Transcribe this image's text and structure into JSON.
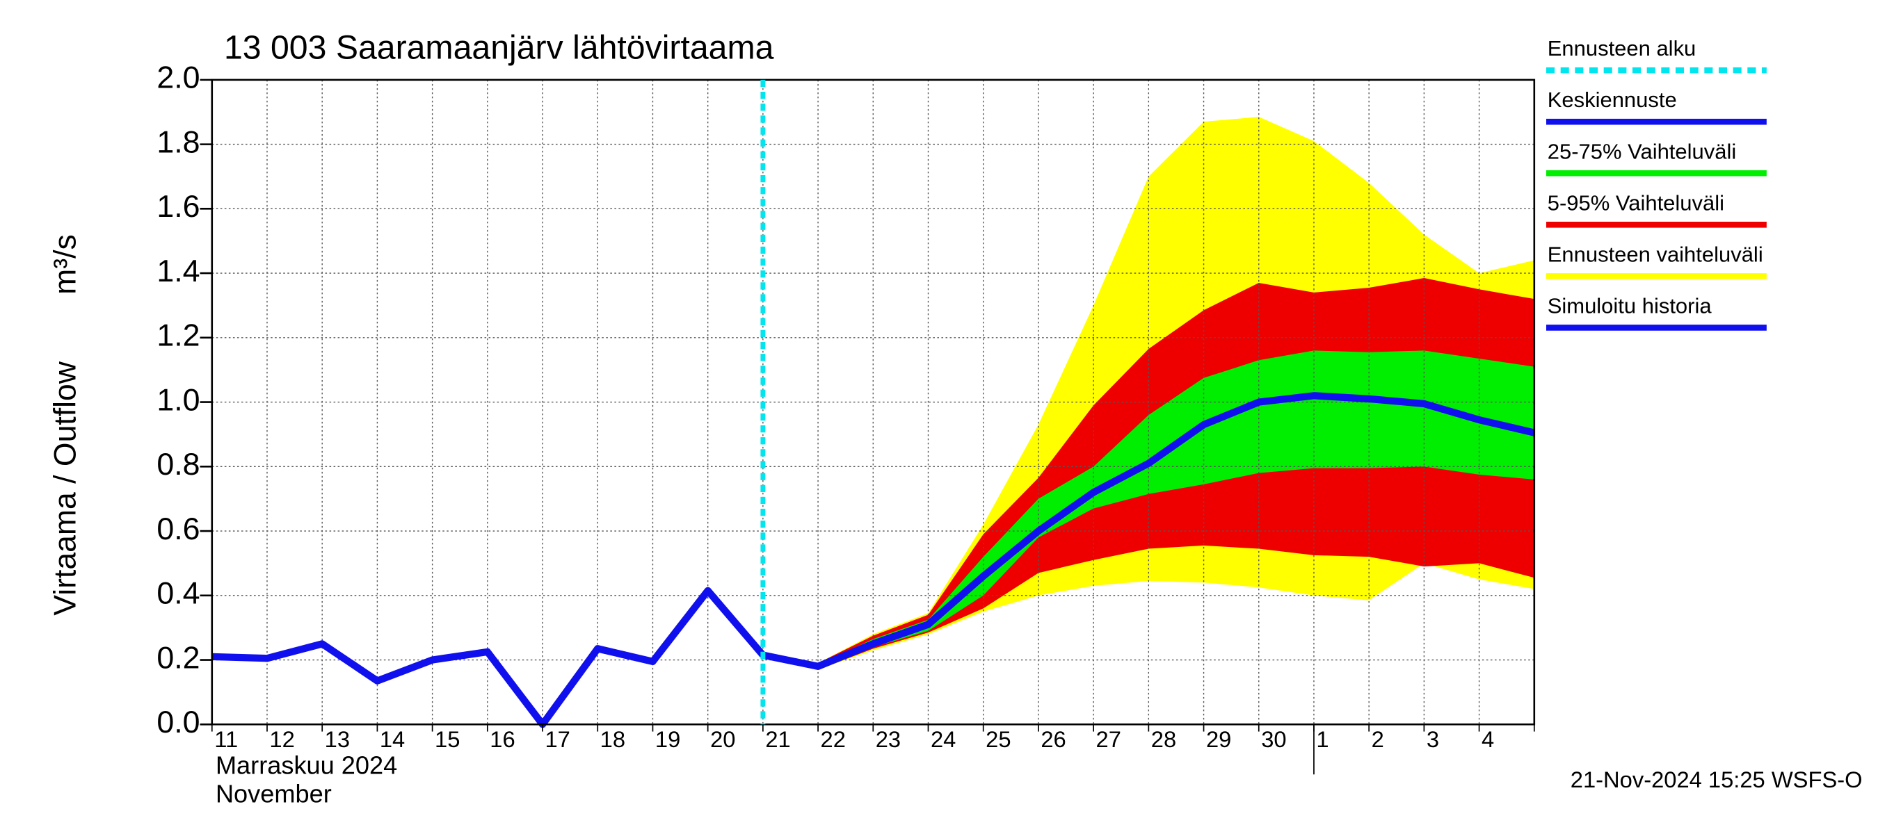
{
  "chart_data": {
    "type": "band-line",
    "title": "13 003 Saaramaanjärv lähtövirtaama",
    "y_label": "Virtaama / Outflow",
    "y_unit": "m³/s",
    "x_label_fi": "Marraskuu 2024",
    "x_label_en": "November",
    "footer": "21-Nov-2024 15:25 WSFS-O",
    "categories": [
      "11",
      "12",
      "13",
      "14",
      "15",
      "16",
      "17",
      "18",
      "19",
      "20",
      "21",
      "22",
      "23",
      "24",
      "25",
      "26",
      "27",
      "28",
      "29",
      "30",
      "1",
      "2",
      "3",
      "4",
      null
    ],
    "ylim": [
      0,
      2.0
    ],
    "yticks": [
      {
        "value": 0,
        "label": "0.0"
      },
      0.2,
      0.4,
      0.6,
      0.8,
      {
        "value": 1,
        "label": "1.0"
      },
      1.2,
      1.4,
      1.6,
      1.8,
      {
        "value": 2,
        "label": "2.0"
      }
    ],
    "grid": true,
    "marker": {
      "name": "Ennusteen alku",
      "color": "#00e5ee"
    },
    "series": [
      {
        "name": "Keskiennuste",
        "color": "#1010ee",
        "kind": "line",
        "values": [
          null,
          null,
          null,
          null,
          null,
          null,
          null,
          null,
          null,
          null,
          0.215,
          0.18,
          0.25,
          0.31,
          0.46,
          0.6,
          0.72,
          0.81,
          0.93,
          1.0,
          1.02,
          1.01,
          0.995,
          0.945,
          0.905
        ]
      },
      {
        "name": "25-75% Vaihteluväli",
        "color": "#00ee00",
        "kind": "band",
        "low": [
          null,
          null,
          null,
          null,
          null,
          null,
          null,
          null,
          null,
          null,
          0.21,
          0.175,
          0.24,
          0.29,
          0.4,
          0.58,
          0.67,
          0.715,
          0.745,
          0.78,
          0.795,
          0.795,
          0.8,
          0.775,
          0.76
        ],
        "high": [
          null,
          null,
          null,
          null,
          null,
          null,
          null,
          null,
          null,
          null,
          0.22,
          0.185,
          0.265,
          0.325,
          0.52,
          0.7,
          0.8,
          0.96,
          1.075,
          1.13,
          1.16,
          1.155,
          1.16,
          1.135,
          1.11
        ]
      },
      {
        "name": "5-95% Vaihteluväli",
        "color": "#ee0000",
        "kind": "band",
        "low": [
          null,
          null,
          null,
          null,
          null,
          null,
          null,
          null,
          null,
          null,
          0.21,
          0.17,
          0.235,
          0.285,
          0.36,
          0.47,
          0.51,
          0.545,
          0.555,
          0.545,
          0.525,
          0.52,
          0.49,
          0.5,
          0.455
        ],
        "high": [
          null,
          null,
          null,
          null,
          null,
          null,
          null,
          null,
          null,
          null,
          0.225,
          0.19,
          0.275,
          0.34,
          0.59,
          0.765,
          0.99,
          1.165,
          1.285,
          1.37,
          1.34,
          1.355,
          1.385,
          1.35,
          1.32
        ]
      },
      {
        "name": "Ennusteen vaihteluväli",
        "color": "#ffff00",
        "kind": "band",
        "low": [
          null,
          null,
          null,
          null,
          null,
          null,
          null,
          null,
          null,
          null,
          0.21,
          0.17,
          0.23,
          0.28,
          0.35,
          0.4,
          0.43,
          0.445,
          0.44,
          0.425,
          0.4,
          0.385,
          0.5,
          0.45,
          0.42
        ],
        "high": [
          null,
          null,
          null,
          null,
          null,
          null,
          null,
          null,
          null,
          null,
          0.225,
          0.19,
          0.28,
          0.345,
          0.62,
          0.93,
          1.3,
          1.7,
          1.87,
          1.885,
          1.81,
          1.68,
          1.52,
          1.4,
          1.44
        ]
      },
      {
        "name": "Simuloitu historia",
        "color": "#1010ee",
        "kind": "line",
        "values": [
          0.21,
          0.205,
          0.25,
          0.135,
          0.2,
          0.225,
          0.0,
          0.235,
          0.195,
          0.415,
          0.215,
          null,
          null,
          null,
          null,
          null,
          null,
          null,
          null,
          null,
          null,
          null,
          null,
          null,
          null
        ]
      }
    ]
  }
}
